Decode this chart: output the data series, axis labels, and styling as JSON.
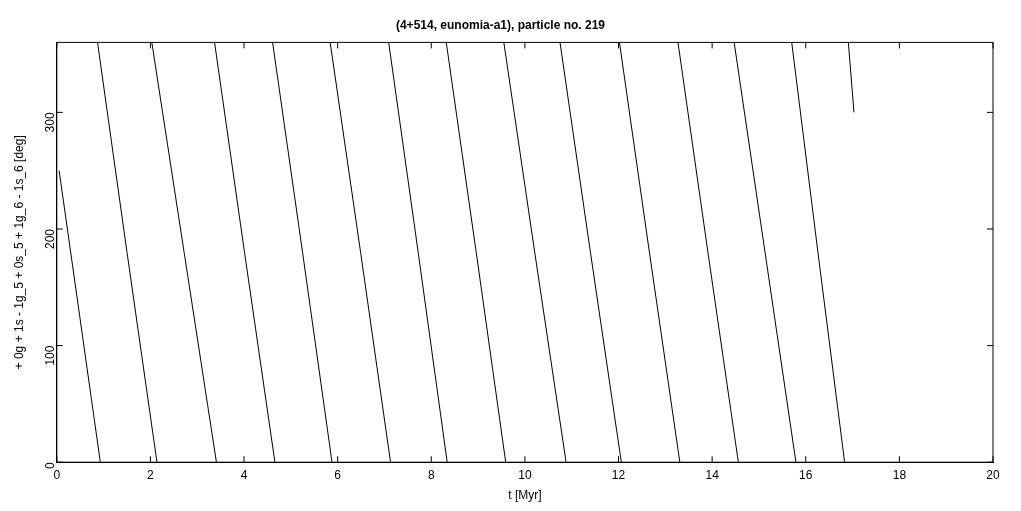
{
  "chart_data": {
    "type": "line",
    "title": "(4+514, eunomia-a1), particle no. 219",
    "xlabel": "t [Myr]",
    "ylabel": "+ 0g + 1s - 1g_5 + 0s_5 + 1g_6 - 1s_6 [deg]",
    "series": [
      {
        "color": "#000000",
        "x": [
          0.05,
          0.49,
          0.93
        ],
        "values": [
          250,
          125,
          0
        ]
      },
      {
        "color": "#000000",
        "x": [
          0.87,
          1.5,
          2.14
        ],
        "values": [
          360,
          180,
          0
        ]
      },
      {
        "color": "#000000",
        "x": [
          2.03,
          2.72,
          3.41
        ],
        "values": [
          360,
          180,
          0
        ]
      },
      {
        "color": "#000000",
        "x": [
          3.37,
          4.01,
          4.66
        ],
        "values": [
          360,
          180,
          0
        ]
      },
      {
        "color": "#000000",
        "x": [
          4.61,
          5.25,
          5.88
        ],
        "values": [
          360,
          180,
          0
        ]
      },
      {
        "color": "#000000",
        "x": [
          5.84,
          6.49,
          7.13
        ],
        "values": [
          360,
          180,
          0
        ]
      },
      {
        "color": "#000000",
        "x": [
          7.09,
          7.72,
          8.34
        ],
        "values": [
          360,
          180,
          0
        ]
      },
      {
        "color": "#000000",
        "x": [
          8.32,
          8.96,
          9.59
        ],
        "values": [
          360,
          180,
          0
        ]
      },
      {
        "color": "#000000",
        "x": [
          9.55,
          10.21,
          10.88
        ],
        "values": [
          360,
          180,
          0
        ]
      },
      {
        "color": "#000000",
        "x": [
          10.75,
          11.4,
          12.06
        ],
        "values": [
          360,
          180,
          0
        ]
      },
      {
        "color": "#000000",
        "x": [
          12.02,
          12.66,
          13.31
        ],
        "values": [
          360,
          180,
          0
        ]
      },
      {
        "color": "#000000",
        "x": [
          13.27,
          13.91,
          14.56
        ],
        "values": [
          360,
          180,
          0
        ]
      },
      {
        "color": "#000000",
        "x": [
          14.47,
          15.13,
          15.79
        ],
        "values": [
          360,
          180,
          0
        ]
      },
      {
        "color": "#000000",
        "x": [
          15.7,
          16.26,
          16.83
        ],
        "values": [
          360,
          180,
          0
        ]
      },
      {
        "color": "#000000",
        "x": [
          16.91,
          17.03
        ],
        "values": [
          360,
          300
        ]
      }
    ],
    "marker": "none",
    "line_style": "solid",
    "grid": false,
    "legend": false,
    "xlim": [
      0,
      20
    ],
    "xticks": [
      0,
      2,
      4,
      6,
      8,
      10,
      12,
      14,
      16,
      18,
      20
    ],
    "ylim": [
      0,
      360
    ],
    "yticks": [
      0,
      100,
      200,
      300
    ]
  }
}
